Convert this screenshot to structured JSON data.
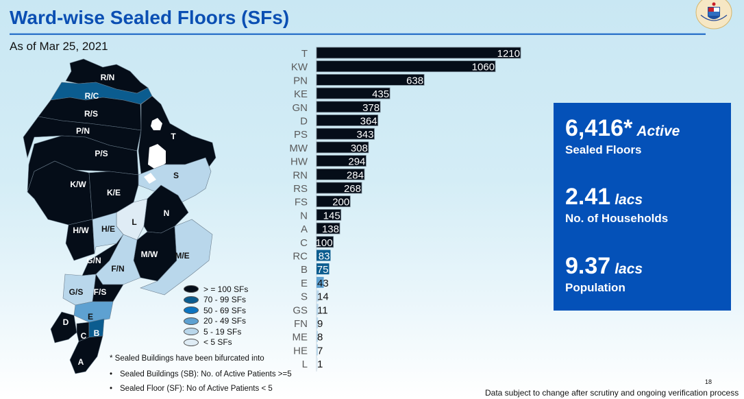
{
  "header": {
    "title": "Ward-wise Sealed Floors (SFs)",
    "subtitle": "As of Mar 25, 2021",
    "logo_icon": "municipal-corporation-seal"
  },
  "map": {
    "wards": [
      {
        "name": "R/N",
        "category": ">=100"
      },
      {
        "name": "R/C",
        "category": "70-99"
      },
      {
        "name": "R/S",
        "category": ">=100"
      },
      {
        "name": "P/N",
        "category": ">=100"
      },
      {
        "name": "P/S",
        "category": ">=100"
      },
      {
        "name": "T",
        "category": ">=100"
      },
      {
        "name": "S",
        "category": "5-19"
      },
      {
        "name": "K/W",
        "category": ">=100"
      },
      {
        "name": "K/E",
        "category": ">=100"
      },
      {
        "name": "N",
        "category": ">=100"
      },
      {
        "name": "L",
        "category": "<5"
      },
      {
        "name": "H/W",
        "category": ">=100"
      },
      {
        "name": "H/E",
        "category": "5-19"
      },
      {
        "name": "G/N",
        "category": ">=100"
      },
      {
        "name": "F/N",
        "category": "5-19"
      },
      {
        "name": "M/W",
        "category": ">=100"
      },
      {
        "name": "M/E",
        "category": "5-19"
      },
      {
        "name": "G/S",
        "category": "5-19"
      },
      {
        "name": "F/S",
        "category": ">=100"
      },
      {
        "name": "E",
        "category": "20-49"
      },
      {
        "name": "D",
        "category": ">=100"
      },
      {
        "name": "C",
        "category": ">=100"
      },
      {
        "name": "B",
        "category": "70-99"
      },
      {
        "name": "A",
        "category": ">=100"
      }
    ],
    "legend": [
      {
        "label": "> = 100 SFs",
        "color": "#050d18"
      },
      {
        "label": "70 - 99 SFs",
        "color": "#0b5c8f"
      },
      {
        "label": "50 - 69 SFs",
        "color": "#0c74c0"
      },
      {
        "label": "20 - 49 SFs",
        "color": "#5ea1d1"
      },
      {
        "label": "5 - 19 SFs",
        "color": "#b9d7eb"
      },
      {
        "label": "< 5 SFs",
        "color": "#dfecf5"
      }
    ]
  },
  "notes": {
    "footnote": "* Sealed Buildings have been bifurcated into",
    "bullets": [
      "Sealed Buildings (SB): No. of Active Patients >=5",
      "Sealed Floor (SF): No of Active Patients < 5"
    ]
  },
  "chart_data": {
    "type": "bar",
    "orientation": "horizontal",
    "title": "",
    "xlabel": "",
    "ylabel": "",
    "categories": [
      "T",
      "KW",
      "PN",
      "KE",
      "GN",
      "D",
      "PS",
      "MW",
      "HW",
      "RN",
      "RS",
      "FS",
      "N",
      "A",
      "C",
      "RC",
      "B",
      "E",
      "S",
      "GS",
      "FN",
      "ME",
      "HE",
      "L"
    ],
    "values": [
      1210,
      1060,
      638,
      435,
      378,
      364,
      343,
      308,
      294,
      284,
      268,
      200,
      145,
      138,
      100,
      83,
      75,
      43,
      14,
      11,
      9,
      8,
      7,
      1
    ],
    "xlim": [
      0,
      1210
    ],
    "grid": false,
    "legend": "none",
    "color_scale": [
      {
        "min": 100,
        "color": "#050d18"
      },
      {
        "min": 70,
        "color": "#0b5c8f"
      },
      {
        "min": 50,
        "color": "#0c74c0"
      },
      {
        "min": 20,
        "color": "#5ea1d1"
      },
      {
        "min": 5,
        "color": "#b9d7eb"
      },
      {
        "min": 0,
        "color": "#dfecf5"
      }
    ]
  },
  "stats": [
    {
      "value": "6,416*",
      "unit": "Active",
      "label": "Sealed Floors"
    },
    {
      "value": "2.41",
      "unit": "lacs",
      "label": "No. of Households"
    },
    {
      "value": "9.37",
      "unit": "lacs",
      "label": "Population"
    }
  ],
  "footer": {
    "page_number": "18",
    "disclaimer": "Data subject to change after scrutiny and ongoing verification process"
  },
  "colors": {
    "title": "#0b4fb3",
    "stat_box": "#0451b8"
  }
}
